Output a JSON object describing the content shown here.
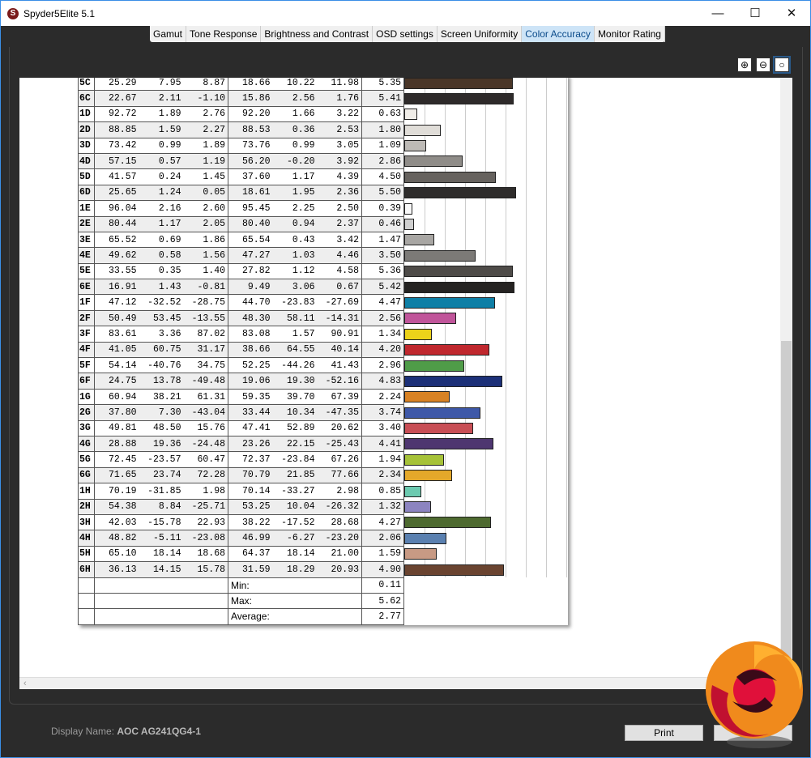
{
  "window": {
    "title": "Spyder5Elite 5.1",
    "minimize": "—",
    "maximize": "☐",
    "close": "✕"
  },
  "tabs": [
    {
      "label": "Gamut"
    },
    {
      "label": "Tone Response"
    },
    {
      "label": "Brightness and Contrast"
    },
    {
      "label": "OSD settings"
    },
    {
      "label": "Screen Uniformity"
    },
    {
      "label": "Color Accuracy",
      "active": true
    },
    {
      "label": "Monitor Rating"
    }
  ],
  "zoom_controls": {
    "zoom_in": "⊕",
    "zoom_out": "⊖",
    "zoom_fit": "○"
  },
  "table": {
    "bar_scale_max": 8,
    "rows": [
      {
        "id": "5C",
        "v": [
          "25.29",
          "7.95",
          "8.87",
          "18.66",
          "10.22",
          "11.98"
        ],
        "de": "5.35",
        "color": "#4a3628"
      },
      {
        "id": "6C",
        "v": [
          "22.67",
          "2.11",
          "-1.10",
          "15.86",
          "2.56",
          "1.76"
        ],
        "de": "5.41",
        "color": "#2e2a2a"
      },
      {
        "id": "1D",
        "v": [
          "92.72",
          "1.89",
          "2.76",
          "92.20",
          "1.66",
          "3.22"
        ],
        "de": "0.63",
        "color": "#f0ede8"
      },
      {
        "id": "2D",
        "v": [
          "88.85",
          "1.59",
          "2.27",
          "88.53",
          "0.36",
          "2.53"
        ],
        "de": "1.80",
        "color": "#e0ddd8"
      },
      {
        "id": "3D",
        "v": [
          "73.42",
          "0.99",
          "1.89",
          "73.76",
          "0.99",
          "3.05"
        ],
        "de": "1.09",
        "color": "#bdbab6"
      },
      {
        "id": "4D",
        "v": [
          "57.15",
          "0.57",
          "1.19",
          "56.20",
          "-0.20",
          "3.92"
        ],
        "de": "2.86",
        "color": "#8f8c88"
      },
      {
        "id": "5D",
        "v": [
          "41.57",
          "0.24",
          "1.45",
          "37.60",
          "1.17",
          "4.39"
        ],
        "de": "4.50",
        "color": "#66625e"
      },
      {
        "id": "6D",
        "v": [
          "25.65",
          "1.24",
          "0.05",
          "18.61",
          "1.95",
          "2.36"
        ],
        "de": "5.50",
        "color": "#2e2c2b"
      },
      {
        "id": "1E",
        "v": [
          "96.04",
          "2.16",
          "2.60",
          "95.45",
          "2.25",
          "2.50"
        ],
        "de": "0.39",
        "color": "#f8f8f8"
      },
      {
        "id": "2E",
        "v": [
          "80.44",
          "1.17",
          "2.05",
          "80.40",
          "0.94",
          "2.37"
        ],
        "de": "0.46",
        "color": "#cfcfcf"
      },
      {
        "id": "3E",
        "v": [
          "65.52",
          "0.69",
          "1.86",
          "65.54",
          "0.43",
          "3.42"
        ],
        "de": "1.47",
        "color": "#a8a6a3"
      },
      {
        "id": "4E",
        "v": [
          "49.62",
          "0.58",
          "1.56",
          "47.27",
          "1.03",
          "4.46"
        ],
        "de": "3.50",
        "color": "#7c7a77"
      },
      {
        "id": "5E",
        "v": [
          "33.55",
          "0.35",
          "1.40",
          "27.82",
          "1.12",
          "4.58"
        ],
        "de": "5.36",
        "color": "#4e4b48"
      },
      {
        "id": "6E",
        "v": [
          "16.91",
          "1.43",
          "-0.81",
          "9.49",
          "3.06",
          "0.67"
        ],
        "de": "5.42",
        "color": "#252322"
      },
      {
        "id": "1F",
        "v": [
          "47.12",
          "-32.52",
          "-28.75",
          "44.70",
          "-23.83",
          "-27.69"
        ],
        "de": "4.47",
        "color": "#0e7fa6"
      },
      {
        "id": "2F",
        "v": [
          "50.49",
          "53.45",
          "-13.55",
          "48.30",
          "58.11",
          "-14.31"
        ],
        "de": "2.56",
        "color": "#c0559a"
      },
      {
        "id": "3F",
        "v": [
          "83.61",
          "3.36",
          "87.02",
          "83.08",
          "1.57",
          "90.91"
        ],
        "de": "1.34",
        "color": "#ecd21a"
      },
      {
        "id": "4F",
        "v": [
          "41.05",
          "60.75",
          "31.17",
          "38.66",
          "64.55",
          "40.14"
        ],
        "de": "4.20",
        "color": "#c0282e"
      },
      {
        "id": "5F",
        "v": [
          "54.14",
          "-40.76",
          "34.75",
          "52.25",
          "-44.26",
          "41.43"
        ],
        "de": "2.96",
        "color": "#4f9c48"
      },
      {
        "id": "6F",
        "v": [
          "24.75",
          "13.78",
          "-49.48",
          "19.06",
          "19.30",
          "-52.16"
        ],
        "de": "4.83",
        "color": "#1c3078"
      },
      {
        "id": "1G",
        "v": [
          "60.94",
          "38.21",
          "61.31",
          "59.35",
          "39.70",
          "67.39"
        ],
        "de": "2.24",
        "color": "#d88224"
      },
      {
        "id": "2G",
        "v": [
          "37.80",
          "7.30",
          "-43.04",
          "33.44",
          "10.34",
          "-47.35"
        ],
        "de": "3.74",
        "color": "#3e58a8"
      },
      {
        "id": "3G",
        "v": [
          "49.81",
          "48.50",
          "15.76",
          "47.41",
          "52.89",
          "20.62"
        ],
        "de": "3.40",
        "color": "#c84e55"
      },
      {
        "id": "4G",
        "v": [
          "28.88",
          "19.36",
          "-24.48",
          "23.26",
          "22.15",
          "-25.43"
        ],
        "de": "4.41",
        "color": "#4e3670"
      },
      {
        "id": "5G",
        "v": [
          "72.45",
          "-23.57",
          "60.47",
          "72.37",
          "-23.84",
          "67.26"
        ],
        "de": "1.94",
        "color": "#a6c238"
      },
      {
        "id": "6G",
        "v": [
          "71.65",
          "23.74",
          "72.28",
          "70.79",
          "21.85",
          "77.66"
        ],
        "de": "2.34",
        "color": "#e4a82a"
      },
      {
        "id": "1H",
        "v": [
          "70.19",
          "-31.85",
          "1.98",
          "70.14",
          "-33.27",
          "2.98"
        ],
        "de": "0.85",
        "color": "#6ccab0"
      },
      {
        "id": "2H",
        "v": [
          "54.38",
          "8.84",
          "-25.71",
          "53.25",
          "10.04",
          "-26.32"
        ],
        "de": "1.32",
        "color": "#8c84c0"
      },
      {
        "id": "3H",
        "v": [
          "42.03",
          "-15.78",
          "22.93",
          "38.22",
          "-17.52",
          "28.68"
        ],
        "de": "4.27",
        "color": "#4e6a30"
      },
      {
        "id": "4H",
        "v": [
          "48.82",
          "-5.11",
          "-23.08",
          "46.99",
          "-6.27",
          "-23.20"
        ],
        "de": "2.06",
        "color": "#5a80b0"
      },
      {
        "id": "5H",
        "v": [
          "65.10",
          "18.14",
          "18.68",
          "64.37",
          "18.14",
          "21.00"
        ],
        "de": "1.59",
        "color": "#c89a84"
      },
      {
        "id": "6H",
        "v": [
          "36.13",
          "14.15",
          "15.78",
          "31.59",
          "18.29",
          "20.93"
        ],
        "de": "4.90",
        "color": "#6a4430"
      }
    ],
    "summary": [
      {
        "label": "Min:",
        "value": "0.11"
      },
      {
        "label": "Max:",
        "value": "5.62"
      },
      {
        "label": "Average:",
        "value": "2.77"
      }
    ]
  },
  "footer": {
    "display_name_label": "Display Name:",
    "display_name": "AOC AG241QG4-1",
    "print": "Print"
  }
}
